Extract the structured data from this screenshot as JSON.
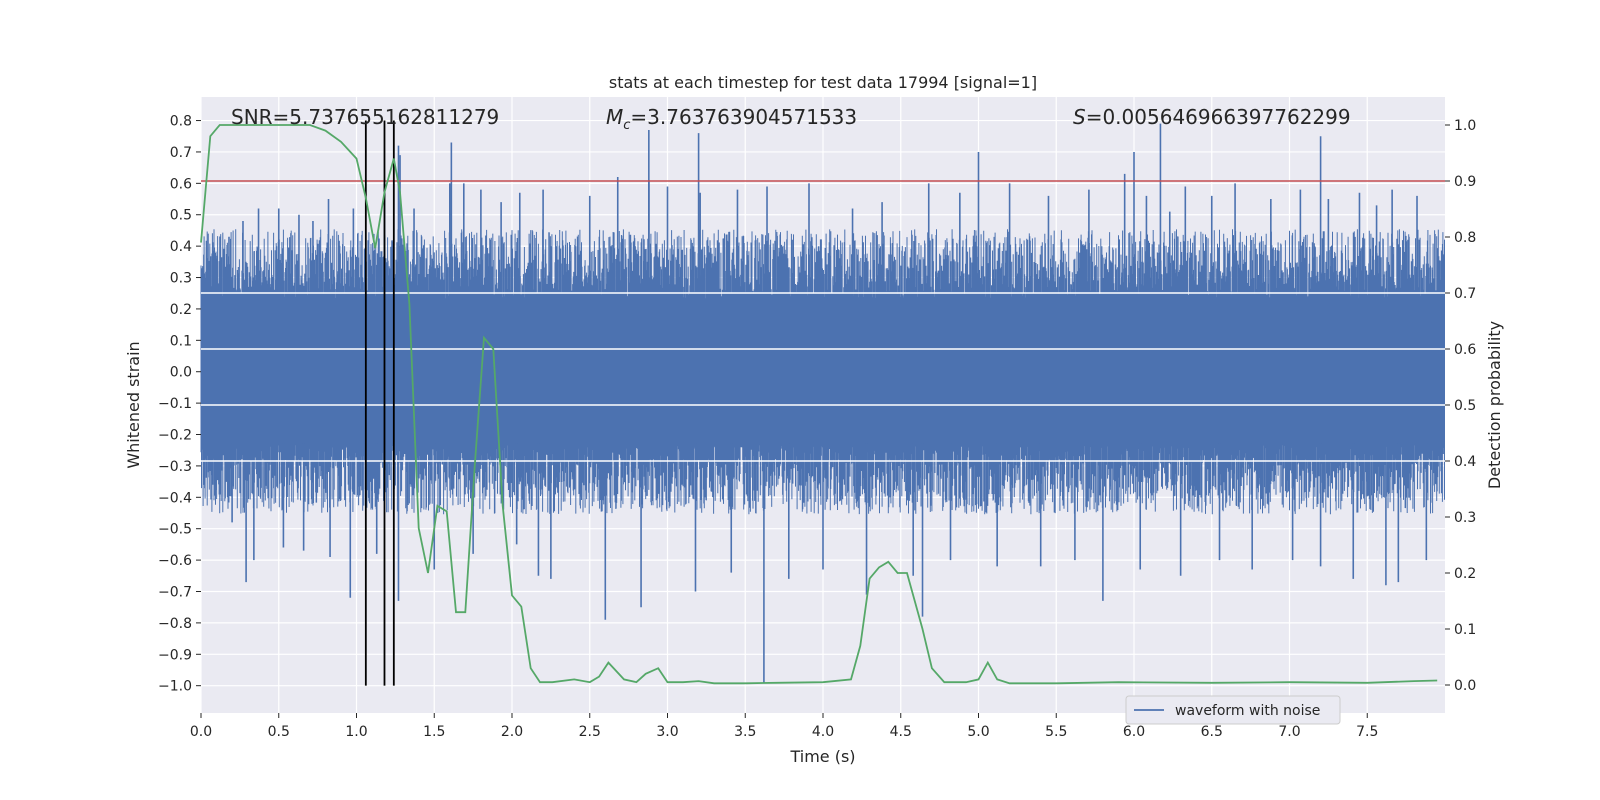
{
  "chart_data": {
    "type": "line",
    "title": "stats at each timestep for test data 17994 [signal=1]",
    "xlabel": "Time (s)",
    "ylabel_left": "Whitened strain",
    "ylabel_right": "Detection probability",
    "xlim": [
      0.0,
      8.0
    ],
    "ylim_left": [
      -1.087,
      0.875
    ],
    "ylim_right": [
      -0.05,
      1.05
    ],
    "xticks": [
      0.0,
      0.5,
      1.0,
      1.5,
      2.0,
      2.5,
      3.0,
      3.5,
      4.0,
      4.5,
      5.0,
      5.5,
      6.0,
      6.5,
      7.0,
      7.5
    ],
    "xtick_labels": [
      "0.0",
      "0.5",
      "1.0",
      "1.5",
      "2.0",
      "2.5",
      "3.0",
      "3.5",
      "4.0",
      "4.5",
      "5.0",
      "5.5",
      "6.0",
      "6.5",
      "7.0",
      "7.5"
    ],
    "yticks_left": [
      0.8,
      0.7,
      0.6,
      0.5,
      0.4,
      0.3,
      0.2,
      0.1,
      0.0,
      -0.1,
      -0.2,
      -0.3,
      -0.4,
      -0.5,
      -0.6,
      -0.7,
      -0.8,
      -0.9,
      -1.0
    ],
    "ytick_labels_left": [
      "0.8",
      "0.7",
      "0.6",
      "0.5",
      "0.4",
      "0.3",
      "0.2",
      "0.1",
      "0.0",
      "−0.1",
      "−0.2",
      "−0.3",
      "−0.4",
      "−0.5",
      "−0.6",
      "−0.7",
      "−0.8",
      "−0.9",
      "−1.0"
    ],
    "yticks_right": [
      1.0,
      0.9,
      0.8,
      0.7,
      0.6,
      0.5,
      0.4,
      0.3,
      0.2,
      0.1,
      0.0
    ],
    "ytick_labels_right": [
      "1.0",
      "0.9",
      "0.8",
      "0.7",
      "0.6",
      "0.5",
      "0.4",
      "0.3",
      "0.2",
      "0.1",
      "0.0"
    ],
    "annotations": {
      "snr": "SNR=5.737655162811279",
      "mc_symbol": "M",
      "mc_sub": "c",
      "mc_value": "=3.763763904571533",
      "s_symbol": "S",
      "s_value": "=0.005646966397762299"
    },
    "threshold": {
      "value": 0.9,
      "axis": "right",
      "color": "#c44e52"
    },
    "vlines": [
      1.06,
      1.18,
      1.24
    ],
    "waveform": {
      "name": "waveform with noise",
      "color": "#4c72b0",
      "envelope_typical": [
        -0.3,
        0.3
      ],
      "spikes_high": [
        [
          0.18,
          0.43
        ],
        [
          0.27,
          0.48
        ],
        [
          0.37,
          0.52
        ],
        [
          0.5,
          0.52
        ],
        [
          0.63,
          0.5
        ],
        [
          0.72,
          0.48
        ],
        [
          0.82,
          0.55
        ],
        [
          0.98,
          0.52
        ],
        [
          1.18,
          0.6
        ],
        [
          1.27,
          0.72
        ],
        [
          1.37,
          0.52
        ],
        [
          1.6,
          0.6
        ],
        [
          1.69,
          0.6
        ],
        [
          1.8,
          0.58
        ],
        [
          1.93,
          0.54
        ],
        [
          2.05,
          0.57
        ],
        [
          2.2,
          0.58
        ],
        [
          2.5,
          0.56
        ],
        [
          2.68,
          0.62
        ],
        [
          2.88,
          0.61
        ],
        [
          3.0,
          0.59
        ],
        [
          3.21,
          0.57
        ],
        [
          3.45,
          0.58
        ],
        [
          3.64,
          0.59
        ],
        [
          3.91,
          0.6
        ],
        [
          4.19,
          0.52
        ],
        [
          4.38,
          0.54
        ],
        [
          4.68,
          0.6
        ],
        [
          4.88,
          0.57
        ],
        [
          5.2,
          0.6
        ],
        [
          5.45,
          0.56
        ],
        [
          5.71,
          0.58
        ],
        [
          5.94,
          0.63
        ],
        [
          6.08,
          0.56
        ],
        [
          6.33,
          0.59
        ],
        [
          6.5,
          0.56
        ],
        [
          6.65,
          0.6
        ],
        [
          6.88,
          0.55
        ],
        [
          7.07,
          0.58
        ],
        [
          7.25,
          0.55
        ],
        [
          7.45,
          0.57
        ],
        [
          7.66,
          0.58
        ],
        [
          7.82,
          0.56
        ],
        [
          2.88,
          0.61
        ],
        [
          6.23,
          0.51
        ],
        [
          7.56,
          0.53
        ]
      ],
      "spikes_very_high": [
        [
          1.61,
          0.73
        ],
        [
          2.88,
          0.77
        ],
        [
          3.2,
          0.76
        ],
        [
          5.0,
          0.7
        ],
        [
          6.17,
          0.79
        ],
        [
          7.2,
          0.75
        ],
        [
          6.0,
          0.7
        ],
        [
          1.28,
          0.69
        ]
      ],
      "spikes_low": [
        [
          0.2,
          -0.48
        ],
        [
          0.34,
          -0.6
        ],
        [
          0.53,
          -0.56
        ],
        [
          0.66,
          -0.57
        ],
        [
          0.83,
          -0.59
        ],
        [
          0.96,
          -0.72
        ],
        [
          1.13,
          -0.58
        ],
        [
          1.27,
          -0.73
        ],
        [
          1.5,
          -0.63
        ],
        [
          1.75,
          -0.58
        ],
        [
          2.03,
          -0.55
        ],
        [
          2.25,
          -0.66
        ],
        [
          2.6,
          -0.79
        ],
        [
          2.83,
          -0.75
        ],
        [
          3.18,
          -0.7
        ],
        [
          3.41,
          -0.64
        ],
        [
          3.78,
          -0.66
        ],
        [
          4.0,
          -0.63
        ],
        [
          4.28,
          -0.71
        ],
        [
          4.58,
          -0.65
        ],
        [
          4.82,
          -0.6
        ],
        [
          5.12,
          -0.62
        ],
        [
          5.4,
          -0.62
        ],
        [
          5.62,
          -0.6
        ],
        [
          5.8,
          -0.73
        ],
        [
          6.04,
          -0.63
        ],
        [
          6.3,
          -0.65
        ],
        [
          6.55,
          -0.6
        ],
        [
          6.76,
          -0.63
        ],
        [
          7.02,
          -0.6
        ],
        [
          7.2,
          -0.62
        ],
        [
          7.41,
          -0.66
        ],
        [
          7.7,
          -0.67
        ],
        [
          7.88,
          -0.6
        ],
        [
          2.17,
          -0.65
        ],
        [
          7.62,
          -0.68
        ]
      ],
      "spikes_very_low": [
        [
          3.62,
          -0.99
        ],
        [
          4.64,
          -0.78
        ],
        [
          0.29,
          -0.67
        ]
      ]
    },
    "detection_probability": {
      "color": "#55a868",
      "x": [
        0.0,
        0.06,
        0.12,
        0.2,
        0.3,
        0.4,
        0.5,
        0.6,
        0.7,
        0.8,
        0.9,
        1.0,
        1.06,
        1.12,
        1.18,
        1.24,
        1.28,
        1.34,
        1.4,
        1.46,
        1.52,
        1.58,
        1.64,
        1.7,
        1.76,
        1.82,
        1.88,
        1.94,
        2.0,
        2.06,
        2.12,
        2.18,
        2.26,
        2.4,
        2.5,
        2.56,
        2.62,
        2.72,
        2.8,
        2.86,
        2.94,
        3.0,
        3.1,
        3.2,
        3.3,
        3.5,
        3.7,
        4.0,
        4.18,
        4.24,
        4.3,
        4.36,
        4.42,
        4.48,
        4.54,
        4.64,
        4.7,
        4.78,
        4.92,
        5.0,
        5.06,
        5.12,
        5.2,
        5.5,
        5.9,
        6.5,
        7.0,
        7.5,
        7.8,
        7.95
      ],
      "y": [
        0.79,
        0.98,
        1.0,
        1.0,
        1.0,
        1.0,
        1.0,
        1.0,
        1.0,
        0.99,
        0.97,
        0.94,
        0.87,
        0.78,
        0.88,
        0.94,
        0.88,
        0.68,
        0.28,
        0.2,
        0.32,
        0.31,
        0.13,
        0.13,
        0.39,
        0.62,
        0.6,
        0.32,
        0.16,
        0.14,
        0.03,
        0.005,
        0.005,
        0.01,
        0.005,
        0.015,
        0.04,
        0.01,
        0.005,
        0.02,
        0.03,
        0.005,
        0.005,
        0.007,
        0.003,
        0.003,
        0.004,
        0.005,
        0.01,
        0.07,
        0.19,
        0.21,
        0.22,
        0.2,
        0.2,
        0.1,
        0.03,
        0.005,
        0.005,
        0.01,
        0.04,
        0.01,
        0.003,
        0.003,
        0.005,
        0.004,
        0.005,
        0.004,
        0.007,
        0.008
      ]
    },
    "legend": {
      "label": "waveform with noise",
      "location": "lower right"
    }
  }
}
